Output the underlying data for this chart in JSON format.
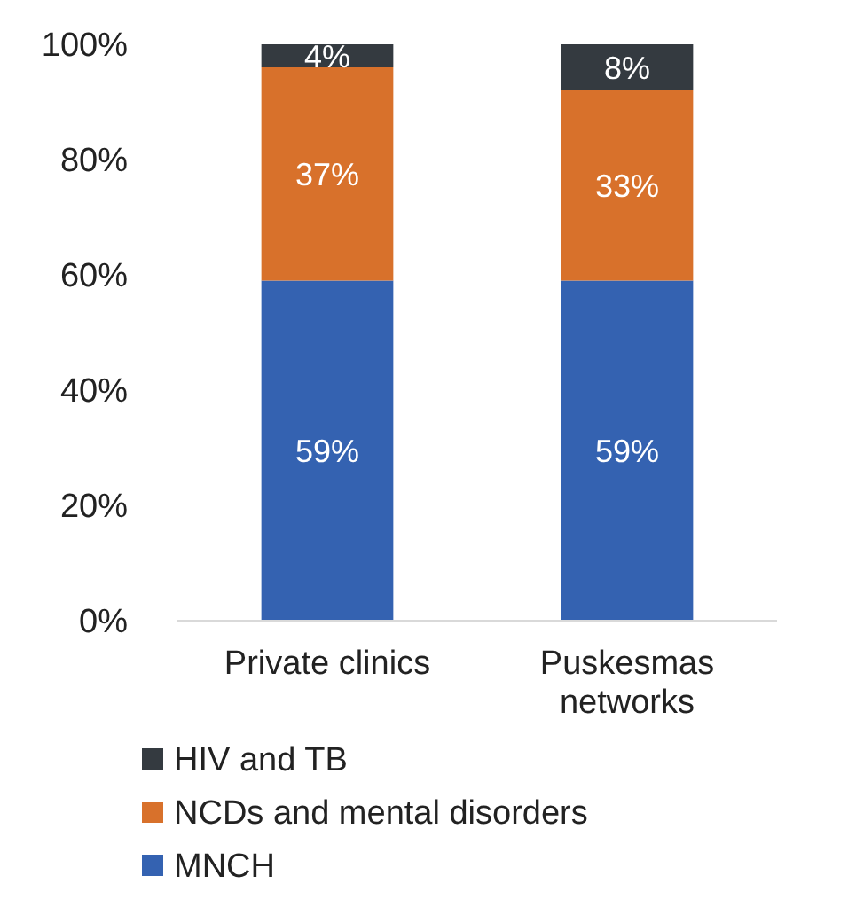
{
  "chart_data": {
    "type": "bar",
    "stacked": true,
    "categories": [
      "Private clinics",
      "Puskesmas networks"
    ],
    "series": [
      {
        "name": "MNCH",
        "color": "#3462b1",
        "values": [
          59,
          59
        ],
        "value_labels": [
          "59%",
          "59%"
        ]
      },
      {
        "name": "NCDs and mental disorders",
        "color": "#d8712b",
        "values": [
          37,
          33
        ],
        "value_labels": [
          "37%",
          "33%"
        ]
      },
      {
        "name": "HIV and TB",
        "color": "#343a40",
        "values": [
          4,
          8
        ],
        "value_labels": [
          "4%",
          "8%"
        ]
      }
    ],
    "ylim": [
      0,
      100
    ],
    "yticks": [
      {
        "value": 0,
        "label": "0%"
      },
      {
        "value": 20,
        "label": "20%"
      },
      {
        "value": 40,
        "label": "40%"
      },
      {
        "value": 60,
        "label": "60%"
      },
      {
        "value": 80,
        "label": "80%"
      },
      {
        "value": 100,
        "label": "100%"
      }
    ],
    "grid": false,
    "legend": "bottom"
  }
}
